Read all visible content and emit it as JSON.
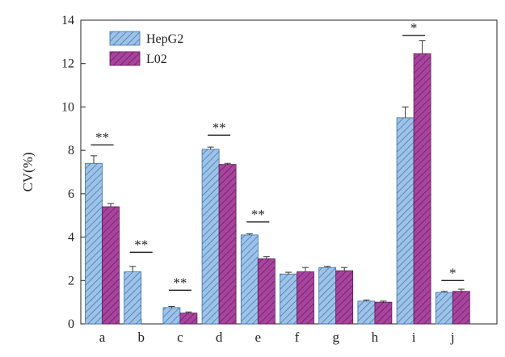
{
  "chart_data": {
    "type": "bar",
    "title": "",
    "xlabel": "",
    "ylabel": "CV(%)",
    "ylim": [
      0,
      14
    ],
    "yticks": [
      0,
      2,
      4,
      6,
      8,
      10,
      12,
      14
    ],
    "categories": [
      "a",
      "b",
      "c",
      "d",
      "e",
      "f",
      "g",
      "h",
      "i",
      "j"
    ],
    "series": [
      {
        "name": "HepG2",
        "color": "#9dc3e8",
        "hatch": "#4a78b0",
        "values": [
          7.4,
          2.4,
          0.75,
          8.05,
          4.1,
          2.3,
          2.6,
          1.05,
          9.5,
          1.45
        ],
        "errors": [
          0.35,
          0.25,
          0.05,
          0.1,
          0.05,
          0.08,
          0.05,
          0.05,
          0.5,
          0.05
        ]
      },
      {
        "name": "L02",
        "color": "#a8449e",
        "hatch": "#6a1f62",
        "values": [
          5.4,
          null,
          0.5,
          7.35,
          3.0,
          2.4,
          2.45,
          1.0,
          12.45,
          1.5
        ],
        "errors": [
          0.15,
          null,
          0.05,
          0.05,
          0.1,
          0.2,
          0.15,
          0.05,
          0.6,
          0.1
        ]
      }
    ],
    "annotations": [
      {
        "category": "a",
        "label": "**",
        "level": 8.25
      },
      {
        "category": "b",
        "label": "**",
        "level": 3.3
      },
      {
        "category": "c",
        "label": "**",
        "level": 1.55
      },
      {
        "category": "d",
        "label": "**",
        "level": 8.7
      },
      {
        "category": "e",
        "label": "**",
        "level": 4.7
      },
      {
        "category": "i",
        "label": "*",
        "level": 13.3
      },
      {
        "category": "j",
        "label": "*",
        "level": 2.0
      }
    ],
    "legend_position": "top-left"
  }
}
